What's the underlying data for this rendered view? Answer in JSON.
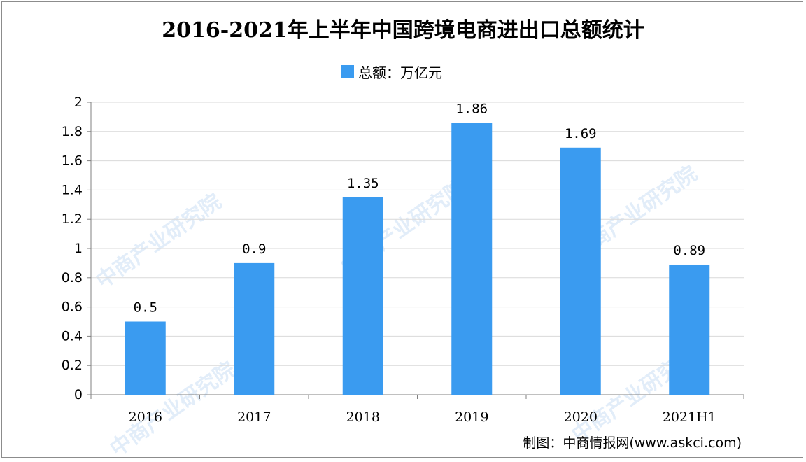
{
  "title": "2016-2021年上半年中国跨境电商进出口总额统计",
  "legend": {
    "label": "总额：万亿元",
    "color": "#3a9bf0"
  },
  "credit": "制图：中商情报网(www.askci.com)",
  "watermark": "中商产业研究院",
  "chart_data": {
    "type": "bar",
    "title": "2016-2021年上半年中国跨境电商进出口总额统计",
    "categories": [
      "2016",
      "2017",
      "2018",
      "2019",
      "2020",
      "2021H1"
    ],
    "series": [
      {
        "name": "总额：万亿元",
        "values": [
          0.5,
          0.9,
          1.35,
          1.86,
          1.69,
          0.89
        ]
      }
    ],
    "data_labels": [
      "0.5",
      "0.9",
      "1.35",
      "1.86",
      "1.69",
      "0.89"
    ],
    "ylim": [
      0,
      2
    ],
    "yticks": [
      "0",
      "0.2",
      "0.4",
      "0.6",
      "0.8",
      "1",
      "1.2",
      "1.4",
      "1.6",
      "1.8",
      "2"
    ],
    "grid": true,
    "legend_position": "top-center",
    "bar_color": "#3a9bf0"
  }
}
